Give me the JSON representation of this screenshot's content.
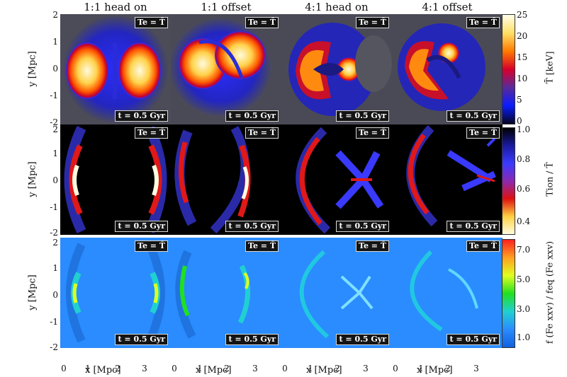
{
  "columns": [
    "1:1 head on",
    "1:1 offset",
    "4:1 head on",
    "4:1 offset"
  ],
  "panel_label_top": "Te = T̄",
  "panel_label_bottom": "t = 0.5 Gyr",
  "y_axis_label": "y [Mpc]",
  "x_axis_label": "x [Mpc]",
  "y_ticks_row1": [
    "2",
    "1",
    "0",
    "-1",
    "-2"
  ],
  "y_ticks_row2": [
    "2",
    "1",
    "0",
    "-1",
    "-2"
  ],
  "y_ticks_row3": [
    "2",
    "1",
    "0",
    "-1",
    "-2"
  ],
  "x_ticks": [
    "0",
    "1",
    "2",
    "3"
  ],
  "colorbars": [
    {
      "label": "T̄ [keV]",
      "ticks": [
        "25",
        "20",
        "15",
        "10",
        "5",
        "0"
      ],
      "colors": [
        "#fffdea",
        "#ffe066",
        "#ff7a00",
        "#d8002a",
        "#5a2a9a",
        "#0a1cff",
        "#050520"
      ]
    },
    {
      "label": "Tion / T̄",
      "ticks": [
        "1.0",
        "0.8",
        "0.6",
        "0.4"
      ],
      "colors": [
        "#000000",
        "#1a1aa0",
        "#3a3aff",
        "#8a2ab0",
        "#e01010",
        "#ffd040",
        "#fffce0"
      ]
    },
    {
      "label": "f (Fe xxv) / feq (Fe xxv)",
      "ticks": [
        "7.0",
        "5.0",
        "3.0",
        "1.0"
      ],
      "colors": [
        "#ff2020",
        "#ffa020",
        "#e0ff20",
        "#20e020",
        "#20d0d0",
        "#2a8cff",
        "#1060e0"
      ]
    }
  ]
}
